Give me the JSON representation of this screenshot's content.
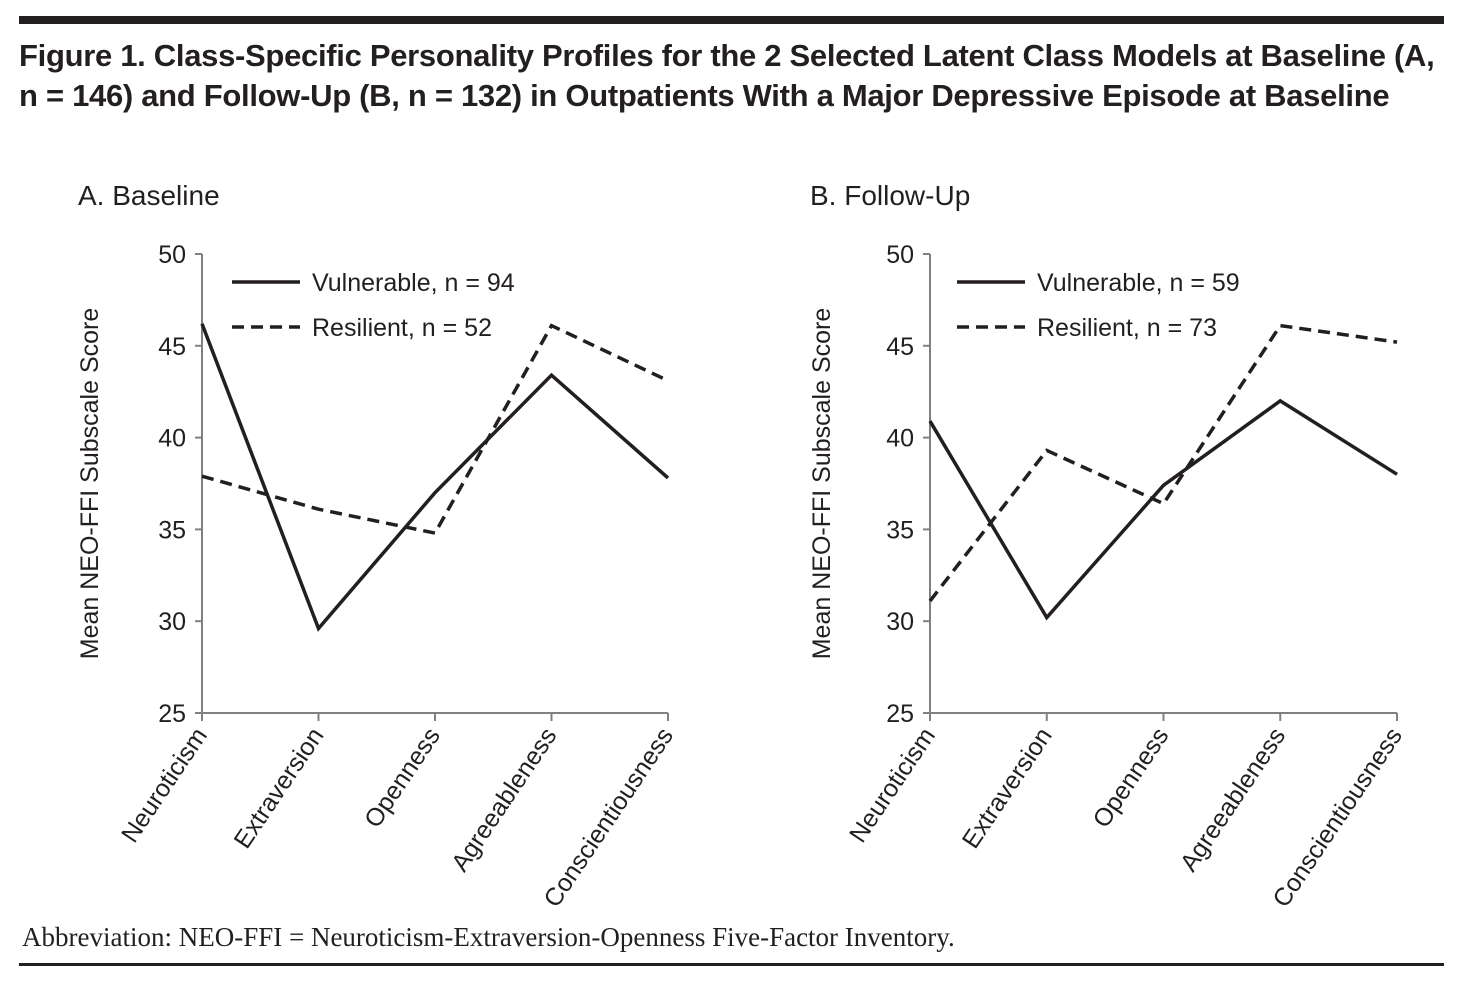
{
  "title": "Figure 1. Class-Specific Personality Profiles for the 2 Selected Latent Class Models at Baseline (A, n = 146) and Follow-Up (B, n = 132) in Outpatients With a Major Depressive Episode at Baseline",
  "footnote": "Abbreviation: NEO-FFI = Neuroticism-Extraversion-Openness Five-Factor Inventory.",
  "colors": {
    "ink": "#231f20",
    "axis": "#808080"
  },
  "chart_data": [
    {
      "type": "line",
      "title": "A. Baseline",
      "xlabel": "",
      "ylabel": "Mean NEO-FFI Subscale Score",
      "categories": [
        "Neuroticism",
        "Extraversion",
        "Openness",
        "Agreeableness",
        "Conscientiousness"
      ],
      "ylim": [
        25,
        50
      ],
      "yticks": [
        "50",
        "45",
        "40",
        "35",
        "30",
        "25"
      ],
      "grid": false,
      "legend_position": "top-left",
      "series": [
        {
          "name": "Vulnerable, n = 94",
          "style": "solid",
          "values": [
            46.2,
            29.6,
            37.0,
            43.4,
            37.8
          ]
        },
        {
          "name": "Resilient, n = 52",
          "style": "dashed",
          "values": [
            37.9,
            36.1,
            34.8,
            46.1,
            43.1
          ]
        }
      ]
    },
    {
      "type": "line",
      "title": "B. Follow-Up",
      "xlabel": "",
      "ylabel": "Mean NEO-FFI Subscale Score",
      "categories": [
        "Neuroticism",
        "Extraversion",
        "Openness",
        "Agreeableness",
        "Conscientiousness"
      ],
      "ylim": [
        25,
        50
      ],
      "yticks": [
        "50",
        "45",
        "40",
        "35",
        "30",
        "25"
      ],
      "grid": false,
      "legend_position": "top-left",
      "series": [
        {
          "name": "Vulnerable, n = 59",
          "style": "solid",
          "values": [
            40.9,
            30.2,
            37.4,
            42.0,
            38.0
          ]
        },
        {
          "name": "Resilient, n = 73",
          "style": "dashed",
          "values": [
            31.1,
            39.3,
            36.4,
            46.1,
            45.2
          ]
        }
      ]
    }
  ]
}
